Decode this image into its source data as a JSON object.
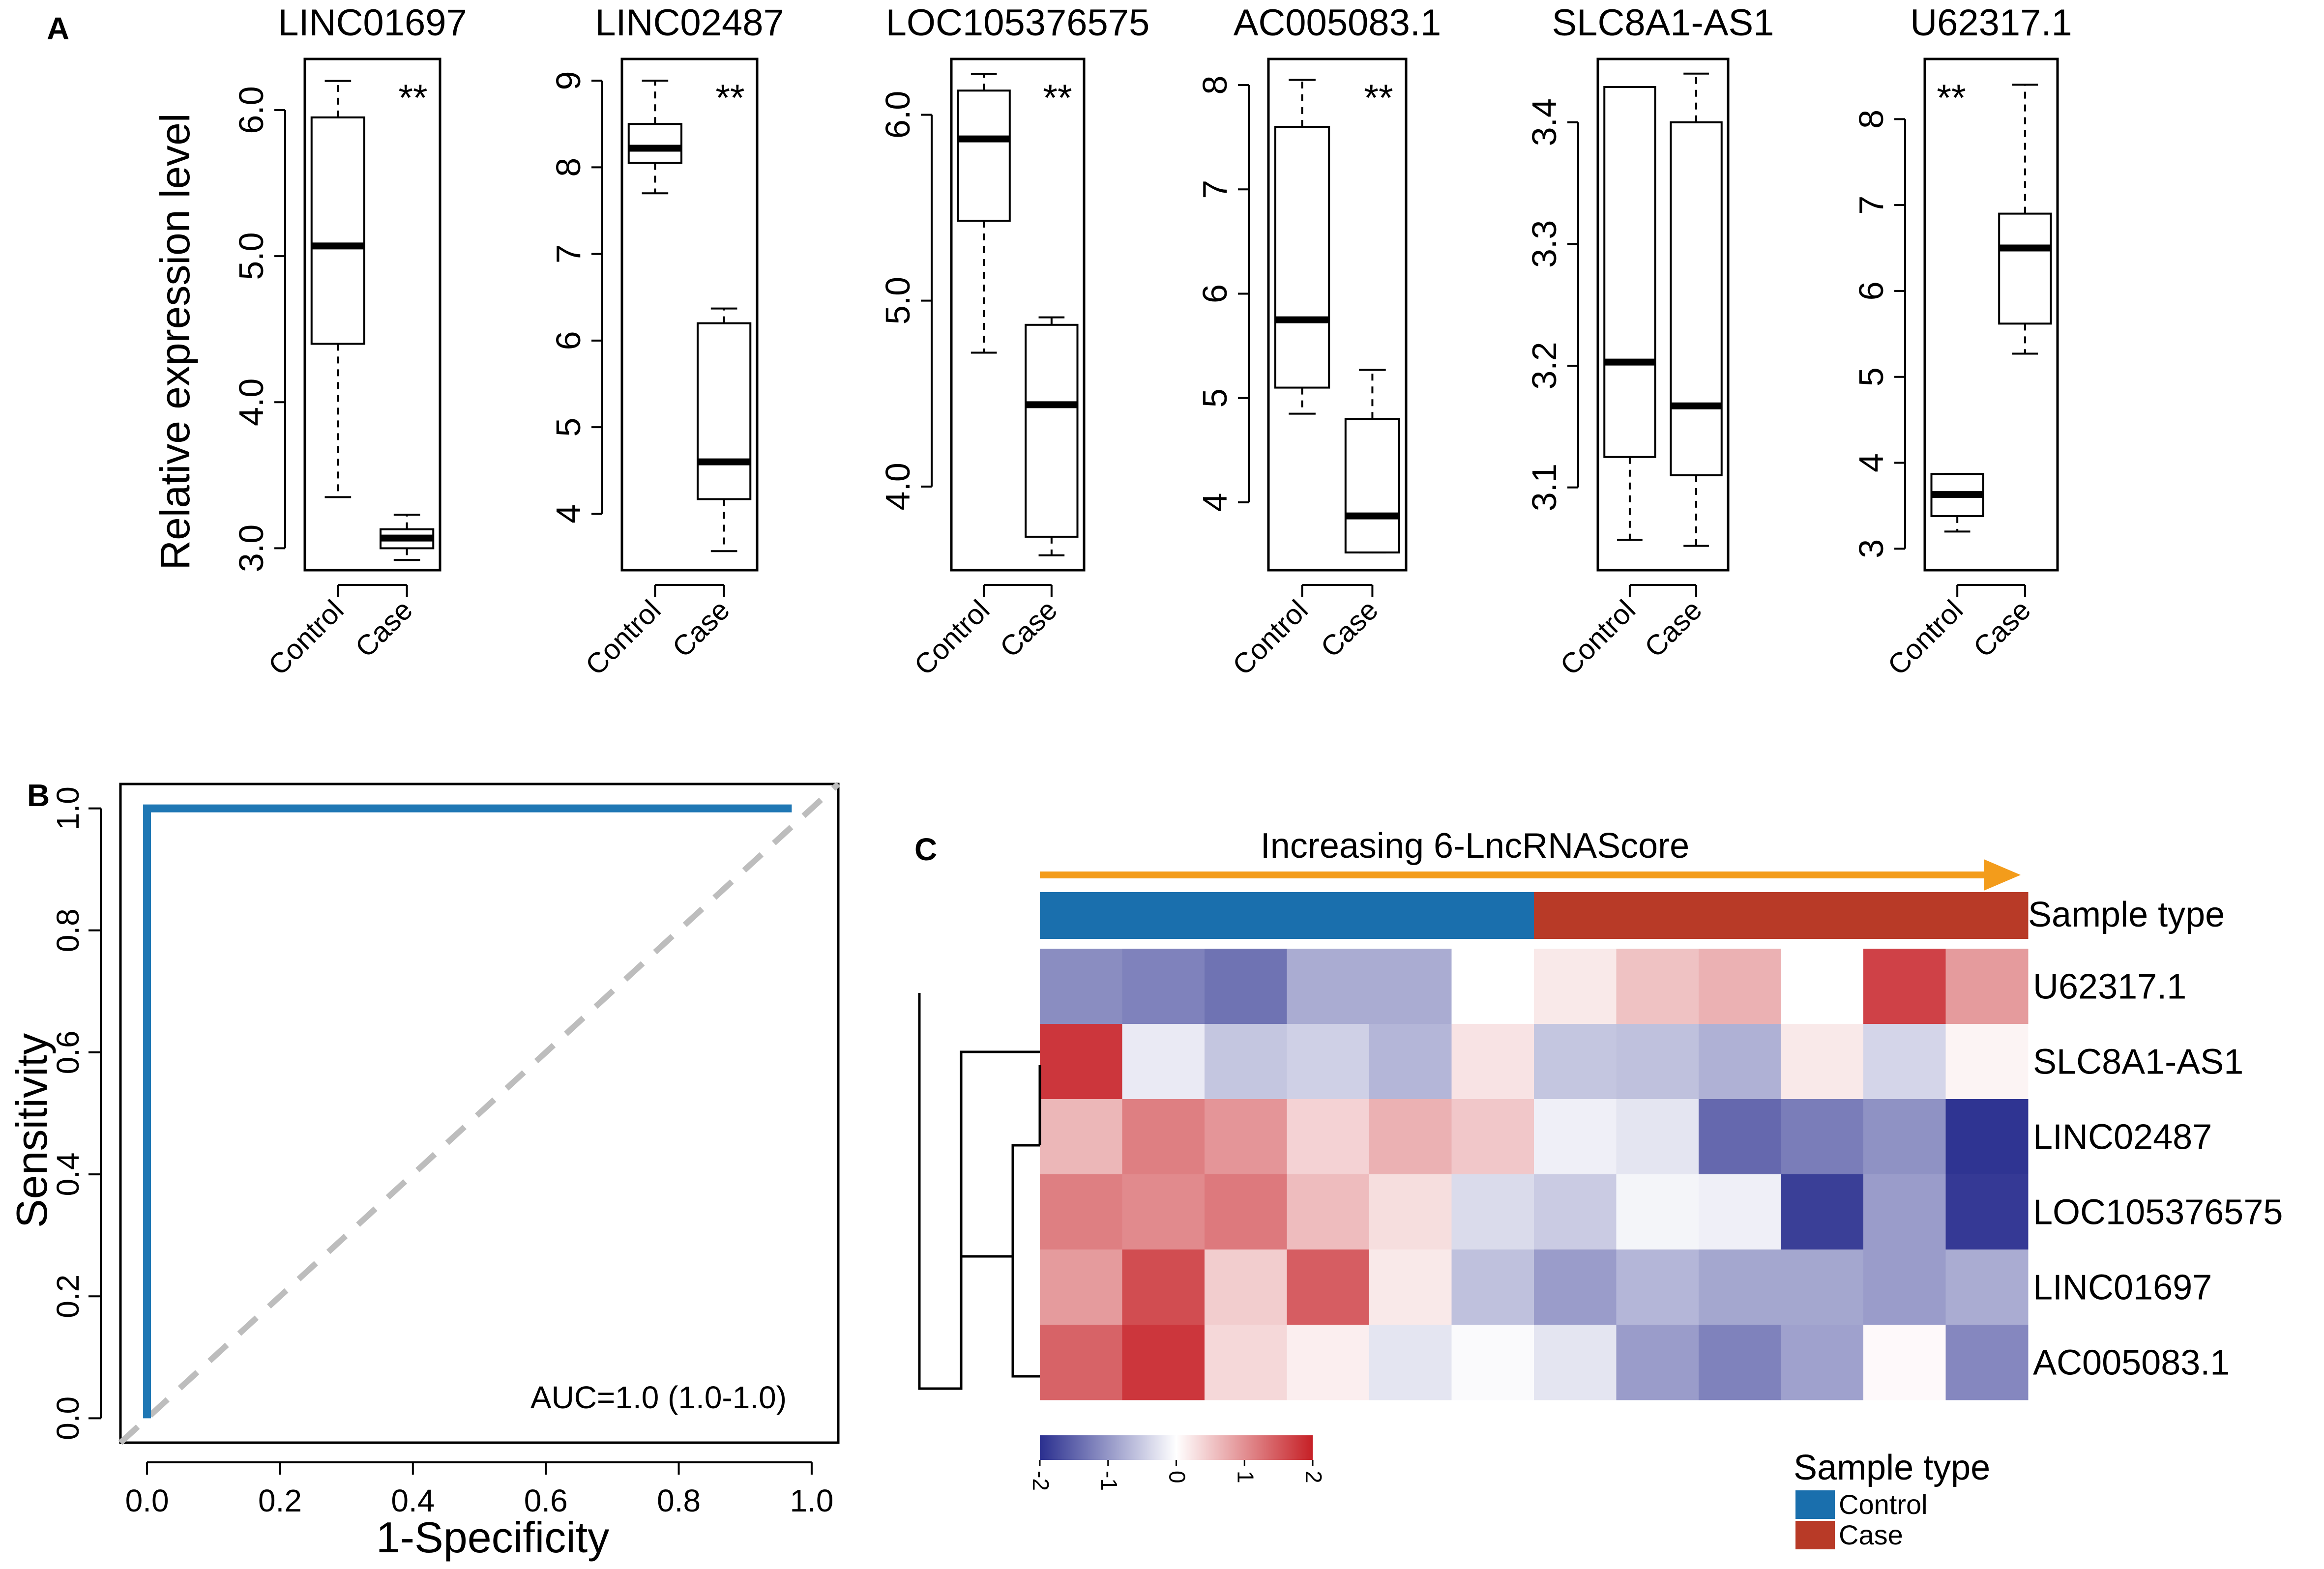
{
  "panel_letters": [
    "A",
    "B",
    "C"
  ],
  "chart_data": [
    {
      "type": "boxplot",
      "panel": "A",
      "ylabel": "Relative expression level",
      "categories": [
        "Control",
        "Case"
      ],
      "subplots": [
        {
          "title": "LINC01697",
          "sig": "**",
          "sig_side": "right",
          "ylim": [
            2.85,
            6.35
          ],
          "ticks": [
            3.0,
            4.0,
            5.0,
            6.0
          ],
          "tick_labels": [
            "3.0",
            "4.0",
            "5.0",
            "6.0"
          ],
          "boxes": [
            {
              "min": 3.35,
              "q1": 4.4,
              "median": 5.07,
              "q3": 5.95,
              "max": 6.2
            },
            {
              "min": 2.92,
              "q1": 3.0,
              "median": 3.07,
              "q3": 3.13,
              "max": 3.23
            }
          ]
        },
        {
          "title": "LINC02487",
          "sig": "**",
          "sig_side": "right",
          "ylim": [
            3.35,
            9.25
          ],
          "ticks": [
            4,
            5,
            6,
            7,
            8,
            9
          ],
          "tick_labels": [
            "4",
            "5",
            "6",
            "7",
            "8",
            "9"
          ],
          "boxes": [
            {
              "min": 7.7,
              "q1": 8.05,
              "median": 8.22,
              "q3": 8.5,
              "max": 9.0
            },
            {
              "min": 3.57,
              "q1": 4.17,
              "median": 4.6,
              "q3": 6.2,
              "max": 6.37
            }
          ]
        },
        {
          "title": "LOC105376575",
          "sig": "**",
          "sig_side": "right",
          "ylim": [
            3.55,
            6.3
          ],
          "ticks": [
            4.0,
            5.0,
            6.0
          ],
          "tick_labels": [
            "4.0",
            "5.0",
            "6.0"
          ],
          "boxes": [
            {
              "min": 4.72,
              "q1": 5.43,
              "median": 5.87,
              "q3": 6.13,
              "max": 6.22
            },
            {
              "min": 3.63,
              "q1": 3.73,
              "median": 4.44,
              "q3": 4.87,
              "max": 4.91
            }
          ]
        },
        {
          "title": "AC005083.1",
          "sig": "**",
          "sig_side": "right",
          "ylim": [
            3.35,
            8.25
          ],
          "ticks": [
            4,
            5,
            6,
            7,
            8
          ],
          "tick_labels": [
            "4",
            "5",
            "6",
            "7",
            "8"
          ],
          "boxes": [
            {
              "min": 4.85,
              "q1": 5.1,
              "median": 5.75,
              "q3": 7.6,
              "max": 8.05
            },
            {
              "min": 3.52,
              "q1": 3.52,
              "median": 3.87,
              "q3": 4.8,
              "max": 5.27
            }
          ]
        },
        {
          "title": "SLC8A1-AS1",
          "sig": "",
          "sig_side": "right",
          "ylim": [
            3.032,
            3.452
          ],
          "ticks": [
            3.1,
            3.2,
            3.3,
            3.4
          ],
          "tick_labels": [
            "3.1",
            "3.2",
            "3.3",
            "3.4"
          ],
          "boxes": [
            {
              "min": 3.057,
              "q1": 3.125,
              "median": 3.203,
              "q3": 3.429,
              "max": 3.429
            },
            {
              "min": 3.052,
              "q1": 3.11,
              "median": 3.167,
              "q3": 3.4,
              "max": 3.44
            }
          ]
        },
        {
          "title": "U62317.1",
          "sig": "**",
          "sig_side": "left",
          "ylim": [
            2.75,
            8.7
          ],
          "ticks": [
            3,
            4,
            5,
            6,
            7,
            8
          ],
          "tick_labels": [
            "3",
            "4",
            "5",
            "6",
            "7",
            "8"
          ],
          "boxes": [
            {
              "min": 3.2,
              "q1": 3.38,
              "median": 3.63,
              "q3": 3.87,
              "max": 3.87
            },
            {
              "min": 5.27,
              "q1": 5.62,
              "median": 6.5,
              "q3": 6.9,
              "max": 8.4
            }
          ]
        }
      ]
    },
    {
      "type": "line",
      "panel": "B",
      "title": "",
      "xlabel": "1-Specificity",
      "ylabel": "Sensitivity",
      "xlim": [
        -0.04,
        1.04
      ],
      "ylim": [
        -0.04,
        1.04
      ],
      "xticks": [
        0.0,
        0.2,
        0.4,
        0.6,
        0.8,
        1.0
      ],
      "xtick_labels": [
        "0.0",
        "0.2",
        "0.4",
        "0.6",
        "0.8",
        "1.0"
      ],
      "yticks": [
        0.0,
        0.2,
        0.4,
        0.6,
        0.8,
        1.0
      ],
      "ytick_labels": [
        "0.0",
        "0.2",
        "0.4",
        "0.6",
        "0.8",
        "1.0"
      ],
      "series": [
        {
          "name": "ROC",
          "color": "#1f77b4",
          "x": [
            0.0,
            0.0,
            0.97
          ],
          "y": [
            0.0,
            1.0,
            1.0
          ]
        },
        {
          "name": "reference",
          "color": "#bdbdbd",
          "dashed": true,
          "x": [
            -0.04,
            1.04
          ],
          "y": [
            -0.04,
            1.04
          ]
        }
      ],
      "annotation": "AUC=1.0 (1.0-1.0)"
    },
    {
      "type": "heatmap",
      "panel": "C",
      "arrow_label": "Increasing 6-LncRNAScore",
      "arrow_color": "#f39c1b",
      "sample_type_label": "Sample type",
      "sample_types": [
        "Control",
        "Control",
        "Control",
        "Control",
        "Control",
        "Control",
        "Case",
        "Case",
        "Case",
        "Case",
        "Case",
        "Case"
      ],
      "rows": [
        "U62317.1",
        "SLC8A1-AS1",
        "LINC02487",
        "LOC105376575",
        "LINC01697",
        "AC005083.1"
      ],
      "values": [
        [
          -1.1,
          -1.2,
          -1.35,
          -0.8,
          -0.8,
          0.0,
          0.2,
          0.55,
          0.7,
          0.0,
          1.7,
          0.9
        ],
        [
          1.8,
          -0.2,
          -0.55,
          -0.45,
          -0.7,
          0.25,
          -0.55,
          -0.6,
          -0.75,
          0.2,
          -0.4,
          0.1
        ],
        [
          0.65,
          1.15,
          0.95,
          0.4,
          0.7,
          0.5,
          -0.15,
          -0.25,
          -1.45,
          -1.25,
          -1.05,
          -1.95
        ],
        [
          1.15,
          1.05,
          1.2,
          0.6,
          0.3,
          -0.35,
          -0.5,
          -0.1,
          -0.15,
          -1.85,
          -0.95,
          -1.9
        ],
        [
          0.9,
          1.6,
          0.45,
          1.45,
          0.2,
          -0.6,
          -0.95,
          -0.7,
          -0.85,
          -0.85,
          -0.95,
          -0.8
        ],
        [
          1.4,
          1.8,
          0.35,
          0.15,
          -0.25,
          -0.05,
          -0.25,
          -0.95,
          -1.2,
          -0.9,
          0.05,
          -1.15
        ]
      ],
      "color_scale": {
        "min": -2,
        "max": 2,
        "low": "#2a2f8f",
        "mid": "#ffffff",
        "high": "#c62026"
      },
      "colorbar_ticks": [
        -2,
        -1,
        0,
        1,
        2
      ],
      "colorbar_tick_labels": [
        "-2",
        "-1",
        "0",
        "1",
        "2"
      ],
      "legend_title": "Sample type",
      "legend": [
        {
          "label": "Control",
          "color": "#1a6fad"
        },
        {
          "label": "Case",
          "color": "#b83a27"
        }
      ]
    }
  ]
}
